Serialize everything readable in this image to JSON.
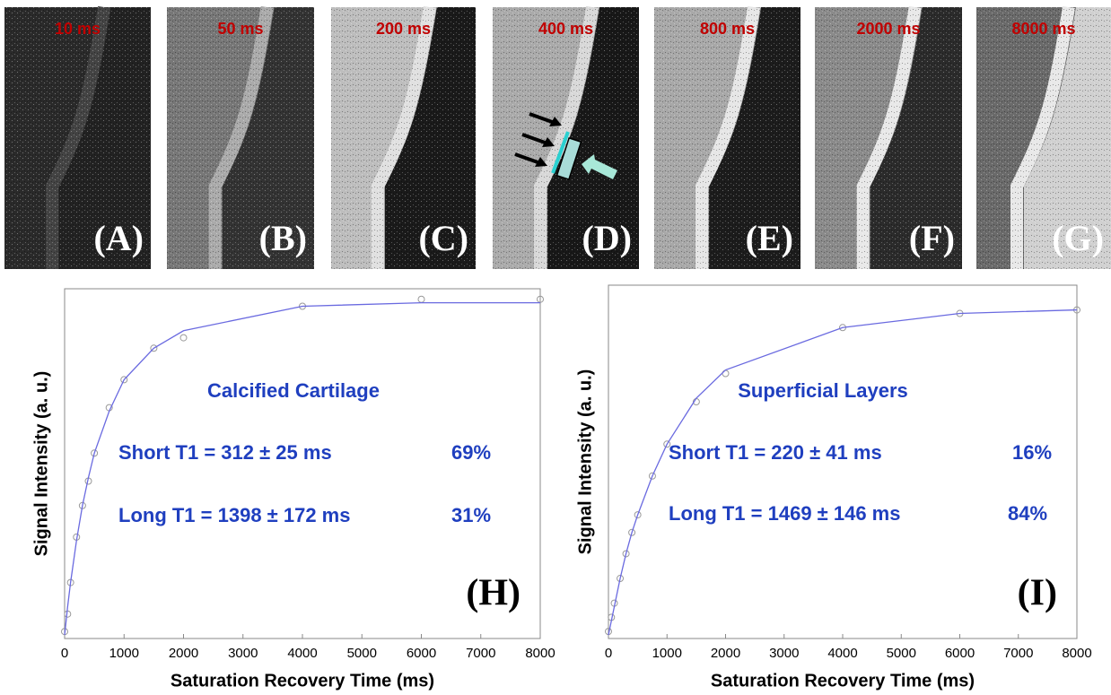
{
  "panels": [
    {
      "time": "10 ms",
      "label": "(A)"
    },
    {
      "time": "50 ms",
      "label": "(B)"
    },
    {
      "time": "200 ms",
      "label": "(C)"
    },
    {
      "time": "400 ms",
      "label": "(D)"
    },
    {
      "time": "800 ms",
      "label": "(E)"
    },
    {
      "time": "2000 ms",
      "label": "(F)"
    },
    {
      "time": "8000 ms",
      "label": "(G)"
    }
  ],
  "chart_data": [
    {
      "type": "line",
      "xlabel": "Saturation Recovery Time (ms)",
      "ylabel": "Signal Intensity (a. u.)",
      "annotations": [
        "Calcified Cartilage",
        "Short T1 = 312 ± 25 ms",
        "69%",
        "Long T1 = 1398 ± 172 ms",
        "31%"
      ],
      "panel_label": "(H)",
      "x": [
        0,
        50,
        100,
        200,
        300,
        400,
        500,
        750,
        1000,
        1500,
        2000,
        4000,
        6000,
        8000
      ],
      "series": [
        {
          "color": "#999999",
          "marker": "circle",
          "values": [
            0.02,
            0.07,
            0.16,
            0.29,
            0.38,
            0.45,
            0.53,
            0.66,
            0.74,
            0.83,
            0.86,
            0.95,
            0.97,
            0.97
          ]
        },
        {
          "color": "#6a6ae0",
          "marker": "none",
          "values": [
            0.01,
            0.09,
            0.16,
            0.28,
            0.38,
            0.46,
            0.53,
            0.65,
            0.74,
            0.83,
            0.88,
            0.95,
            0.96,
            0.96
          ]
        }
      ],
      "xlim": [
        0,
        8000
      ],
      "xticks": [
        0,
        1000,
        2000,
        3000,
        4000,
        5000,
        6000,
        7000,
        8000
      ],
      "ylim": [
        0,
        1
      ]
    },
    {
      "type": "line",
      "xlabel": "Saturation Recovery Time (ms)",
      "ylabel": "Signal Intensity (a. u.)",
      "annotations": [
        "Superficial Layers",
        "Short T1 = 220 ± 41 ms",
        "16%",
        "Long T1 = 1469 ± 146 ms",
        "84%"
      ],
      "panel_label": "(I)",
      "x": [
        0,
        50,
        100,
        200,
        300,
        400,
        500,
        750,
        1000,
        1500,
        2000,
        4000,
        6000,
        8000
      ],
      "series": [
        {
          "color": "#999999",
          "marker": "circle",
          "values": [
            0.02,
            0.06,
            0.1,
            0.17,
            0.24,
            0.3,
            0.35,
            0.46,
            0.55,
            0.67,
            0.75,
            0.88,
            0.92,
            0.93
          ]
        },
        {
          "color": "#6a6ae0",
          "marker": "none",
          "values": [
            0.01,
            0.05,
            0.09,
            0.17,
            0.24,
            0.3,
            0.35,
            0.46,
            0.55,
            0.68,
            0.76,
            0.88,
            0.92,
            0.93
          ]
        }
      ],
      "xlim": [
        0,
        8000
      ],
      "xticks": [
        0,
        1000,
        2000,
        3000,
        4000,
        5000,
        6000,
        7000,
        8000
      ],
      "ylim": [
        0,
        1
      ]
    }
  ]
}
